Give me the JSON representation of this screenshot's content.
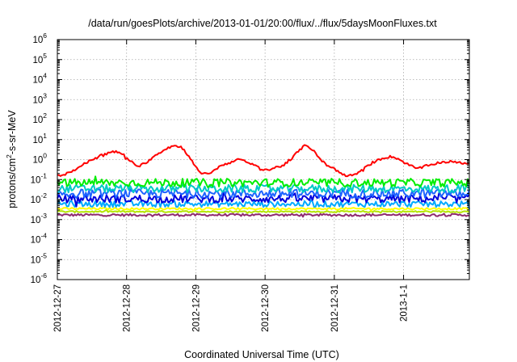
{
  "chart_data": {
    "type": "line",
    "title": "/data/run/goesPlots/archive/2013-01-01/20:00/flux/../flux/5daysMoonFluxes.txt",
    "xlabel": "Coordinated Universal Time (UTC)",
    "ylabel": {
      "pre": "protons/cm",
      "sup": "2",
      "post": "-s-sr-MeV"
    },
    "x_range_days": [
      0,
      5.95
    ],
    "xticks": [
      {
        "label": "2012-12-27",
        "day": 0
      },
      {
        "label": "2012-12-28",
        "day": 1
      },
      {
        "label": "2012-12-29",
        "day": 2
      },
      {
        "label": "2012-12-30",
        "day": 3
      },
      {
        "label": "2012-12-31",
        "day": 4
      },
      {
        "label": "2013-1-1",
        "day": 5
      }
    ],
    "y_scale": "log",
    "ylim": [
      1e-06,
      1000000.0
    ],
    "yticks": [
      {
        "base": "10",
        "exp": "-6",
        "value": -6
      },
      {
        "base": "10",
        "exp": "-5",
        "value": -5
      },
      {
        "base": "10",
        "exp": "-4",
        "value": -4
      },
      {
        "base": "10",
        "exp": "-3",
        "value": -3
      },
      {
        "base": "10",
        "exp": "-2",
        "value": -2
      },
      {
        "base": "10",
        "exp": "-1",
        "value": -1
      },
      {
        "base": "10",
        "exp": "0",
        "value": 0
      },
      {
        "base": "10",
        "exp": "1",
        "value": 1
      },
      {
        "base": "10",
        "exp": "2",
        "value": 2
      },
      {
        "base": "10",
        "exp": "3",
        "value": 3
      },
      {
        "base": "10",
        "exp": "4",
        "value": 4
      },
      {
        "base": "10",
        "exp": "5",
        "value": 5
      },
      {
        "base": "10",
        "exp": "6",
        "value": 6
      }
    ],
    "grid": true,
    "legend": "none",
    "series": [
      {
        "color": "#ff0000",
        "noise": 0.06,
        "points": [
          [
            0,
            0.15
          ],
          [
            0.15,
            0.2
          ],
          [
            0.3,
            0.4
          ],
          [
            0.45,
            0.8
          ],
          [
            0.6,
            1.5
          ],
          [
            0.75,
            2.2
          ],
          [
            0.85,
            2.5
          ],
          [
            0.95,
            1.8
          ],
          [
            1.05,
            0.9
          ],
          [
            1.15,
            0.4
          ],
          [
            1.3,
            0.8
          ],
          [
            1.45,
            2
          ],
          [
            1.6,
            4
          ],
          [
            1.7,
            5
          ],
          [
            1.8,
            4
          ],
          [
            1.9,
            1.5
          ],
          [
            2.0,
            0.4
          ],
          [
            2.1,
            0.18
          ],
          [
            2.25,
            0.25
          ],
          [
            2.35,
            0.5
          ],
          [
            2.45,
            0.6
          ],
          [
            2.6,
            1.1
          ],
          [
            2.75,
            0.7
          ],
          [
            2.85,
            0.5
          ],
          [
            2.95,
            0.35
          ],
          [
            3.05,
            0.3
          ],
          [
            3.15,
            0.4
          ],
          [
            3.25,
            0.5
          ],
          [
            3.35,
            0.8
          ],
          [
            3.45,
            2
          ],
          [
            3.55,
            4.5
          ],
          [
            3.6,
            5
          ],
          [
            3.7,
            3
          ],
          [
            3.8,
            1
          ],
          [
            3.9,
            0.5
          ],
          [
            4.0,
            0.35
          ],
          [
            4.1,
            0.2
          ],
          [
            4.2,
            0.15
          ],
          [
            4.3,
            0.18
          ],
          [
            4.4,
            0.3
          ],
          [
            4.55,
            0.7
          ],
          [
            4.7,
            1.2
          ],
          [
            4.8,
            1.4
          ],
          [
            4.9,
            1.2
          ],
          [
            5.05,
            0.6
          ],
          [
            5.2,
            0.35
          ],
          [
            5.35,
            0.5
          ],
          [
            5.5,
            0.7
          ],
          [
            5.65,
            0.8
          ],
          [
            5.8,
            0.7
          ],
          [
            5.95,
            0.65
          ]
        ]
      },
      {
        "color": "#00ee00",
        "noise": 0.2,
        "points": [
          [
            0,
            0.07
          ],
          [
            5.95,
            0.07
          ]
        ]
      },
      {
        "color": "#00c8c8",
        "noise": 0.2,
        "points": [
          [
            0,
            0.035
          ],
          [
            5.95,
            0.035
          ]
        ]
      },
      {
        "color": "#1e64ff",
        "noise": 0.22,
        "points": [
          [
            0,
            0.02
          ],
          [
            5.95,
            0.02
          ]
        ]
      },
      {
        "color": "#0000dd",
        "noise": 0.2,
        "points": [
          [
            0,
            0.011
          ],
          [
            5.95,
            0.011
          ]
        ]
      },
      {
        "color": "#00aaff",
        "noise": 0.15,
        "points": [
          [
            0,
            0.006
          ],
          [
            5.95,
            0.006
          ]
        ]
      },
      {
        "color": "#ffff00",
        "noise": 0.05,
        "points": [
          [
            0,
            0.0035
          ],
          [
            5.95,
            0.0035
          ]
        ]
      },
      {
        "color": "#b4e600",
        "noise": 0.04,
        "points": [
          [
            0,
            0.0025
          ],
          [
            5.95,
            0.0025
          ]
        ]
      },
      {
        "color": "#8e2a6e",
        "noise": 0.06,
        "points": [
          [
            0,
            0.0017
          ],
          [
            5.95,
            0.0017
          ]
        ]
      }
    ]
  }
}
